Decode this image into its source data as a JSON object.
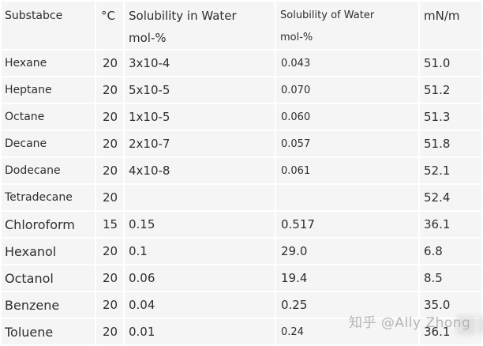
{
  "header": {
    "substance": "Substabce",
    "temperature": "°C",
    "sol_in_water_line1": "Solubility in Water",
    "sol_in_water_line2": "mol-%",
    "sol_of_water_line1": "Solubility of Water",
    "sol_of_water_line2": "mol-%",
    "surface_tension": "mN/m"
  },
  "table": {
    "rows": [
      {
        "substance": "Hexane",
        "temp": "20",
        "sol_in_water": "3x10-4",
        "sol_of_water": "0.043",
        "mn_per_m": "51.0",
        "name_large": false,
        "solw_small": true
      },
      {
        "substance": "Heptane",
        "temp": "20",
        "sol_in_water": "5x10-5",
        "sol_of_water": "0.070",
        "mn_per_m": "51.2",
        "name_large": false,
        "solw_small": true
      },
      {
        "substance": "Octane",
        "temp": "20",
        "sol_in_water": "1x10-5",
        "sol_of_water": "0.060",
        "mn_per_m": "51.3",
        "name_large": false,
        "solw_small": true
      },
      {
        "substance": "Decane",
        "temp": "20",
        "sol_in_water": "2x10-7",
        "sol_of_water": "0.057",
        "mn_per_m": "51.8",
        "name_large": false,
        "solw_small": true
      },
      {
        "substance": "Dodecane",
        "temp": "20",
        "sol_in_water": "4x10-8",
        "sol_of_water": "0.061",
        "mn_per_m": "52.1",
        "name_large": false,
        "solw_small": true
      },
      {
        "substance": "Tetradecane",
        "temp": "20",
        "sol_in_water": "",
        "sol_of_water": "",
        "mn_per_m": "52.4",
        "name_large": false,
        "solw_small": true
      },
      {
        "substance": "Chloroform",
        "temp": "15",
        "sol_in_water": "0.15",
        "sol_of_water": "0.517",
        "mn_per_m": "36.1",
        "name_large": true,
        "solw_small": false
      },
      {
        "substance": "Hexanol",
        "temp": "20",
        "sol_in_water": "0.1",
        "sol_of_water": "29.0",
        "mn_per_m": "6.8",
        "name_large": true,
        "solw_small": false
      },
      {
        "substance": "Octanol",
        "temp": "20",
        "sol_in_water": "0.06",
        "sol_of_water": "19.4",
        "mn_per_m": "8.5",
        "name_large": true,
        "solw_small": false
      },
      {
        "substance": "Benzene",
        "temp": "20",
        "sol_in_water": "0.04",
        "sol_of_water": "0.25",
        "mn_per_m": "35.0",
        "name_large": true,
        "solw_small": false
      },
      {
        "substance": "Toluene",
        "temp": "20",
        "sol_in_water": "0.01",
        "sol_of_water": "0.24",
        "mn_per_m": "36.1",
        "name_large": true,
        "solw_small": true
      }
    ]
  },
  "watermark": {
    "text": "知乎 @Ally Zhong"
  },
  "colors": {
    "cell_bg": "#f5f5f5",
    "gap": "#ffffff",
    "text": "#2e2e2e",
    "watermark": "#b5b5b5"
  }
}
